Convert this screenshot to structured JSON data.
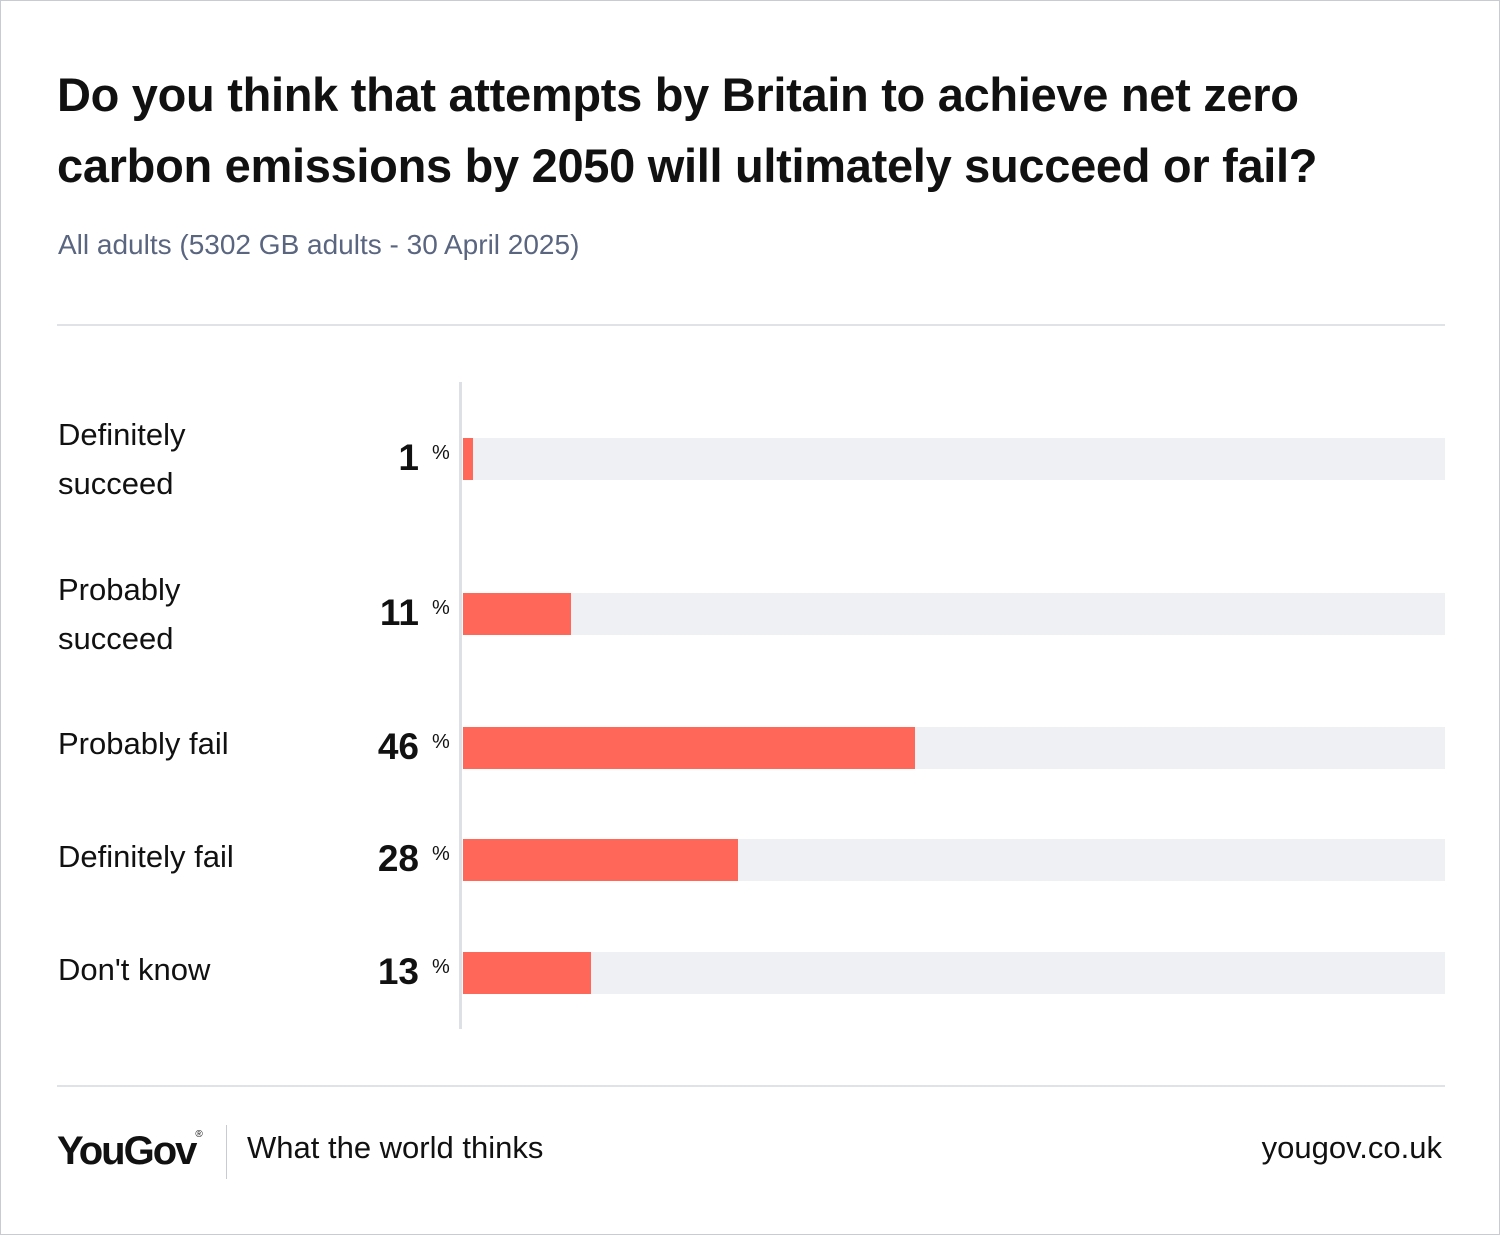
{
  "header": {
    "title": "Do you think that attempts by Britain to achieve net zero carbon emissions by 2050 will ultimately succeed or fail?",
    "subtitle": "All adults (5302 GB adults - 30 April 2025)"
  },
  "chart_data": {
    "type": "bar",
    "orientation": "horizontal",
    "title": "Do you think that attempts by Britain to achieve net zero carbon emissions by 2050 will ultimately succeed or fail?",
    "subtitle": "All adults (5302 GB adults - 30 April 2025)",
    "categories": [
      "Definitely succeed",
      "Probably succeed",
      "Probably fail",
      "Definitely fail",
      "Don't know"
    ],
    "values": [
      1,
      11,
      46,
      28,
      13
    ],
    "value_suffix": "%",
    "xlim": [
      0,
      100
    ],
    "colors": {
      "bar": "#ff6759",
      "track": "#eef0f3"
    }
  },
  "footer": {
    "brand": "YouGov",
    "brand_mark": "®",
    "tagline": "What the world thinks",
    "url": "yougov.co.uk"
  }
}
